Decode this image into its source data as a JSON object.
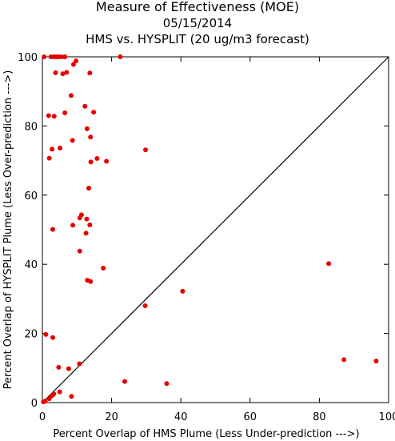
{
  "chart_data": {
    "type": "scatter",
    "title": "Measure of Effectiveness (MOE)",
    "subtitle_date": "05/15/2014",
    "subtitle": "HMS vs. HYSPLIT  (20 ug/m3 forecast)",
    "xlabel": "Percent Overlap of HMS Plume (Less Under-prediction --->)",
    "ylabel": "Percent Overlap of HYSPLIT Plume (Less Over-prediction --->)",
    "xlim": [
      0,
      100
    ],
    "ylim": [
      0,
      100
    ],
    "xticks": [
      "0",
      "20",
      "40",
      "60",
      "80",
      "100"
    ],
    "yticks": [
      "0",
      "20",
      "40",
      "60",
      "80",
      "100"
    ],
    "grid": false,
    "reference_line": "y = x",
    "point_color": "#e60000",
    "points": [
      [
        0.5,
        100
      ],
      [
        2.5,
        100
      ],
      [
        3.3,
        100
      ],
      [
        4.0,
        100
      ],
      [
        4.7,
        100
      ],
      [
        5.5,
        100
      ],
      [
        6.5,
        100
      ],
      [
        22.5,
        100
      ],
      [
        9.7,
        98.8
      ],
      [
        9.0,
        97.8
      ],
      [
        3.8,
        95.4
      ],
      [
        5.9,
        95.1
      ],
      [
        7.0,
        95.5
      ],
      [
        13.7,
        95.3
      ],
      [
        8.3,
        88.8
      ],
      [
        12.3,
        85.7
      ],
      [
        6.5,
        83.8
      ],
      [
        14.8,
        84.0
      ],
      [
        1.8,
        83.0
      ],
      [
        3.4,
        82.8
      ],
      [
        12.9,
        79.2
      ],
      [
        13.9,
        76.8
      ],
      [
        8.7,
        75.8
      ],
      [
        2.8,
        73.3
      ],
      [
        5.1,
        73.6
      ],
      [
        29.8,
        73.1
      ],
      [
        2.0,
        70.7
      ],
      [
        15.8,
        70.6
      ],
      [
        18.5,
        69.8
      ],
      [
        14.0,
        69.6
      ],
      [
        13.4,
        62.0
      ],
      [
        11.3,
        54.3
      ],
      [
        10.8,
        53.4
      ],
      [
        12.8,
        53.1
      ],
      [
        8.8,
        51.3
      ],
      [
        13.7,
        51.4
      ],
      [
        3.0,
        50.1
      ],
      [
        12.6,
        49.0
      ],
      [
        10.8,
        43.8
      ],
      [
        17.6,
        38.9
      ],
      [
        13.0,
        35.4
      ],
      [
        13.9,
        35.0
      ],
      [
        82.7,
        40.2
      ],
      [
        40.5,
        32.2
      ],
      [
        29.7,
        28.0
      ],
      [
        1.0,
        19.7
      ],
      [
        3.0,
        18.8
      ],
      [
        87.1,
        12.4
      ],
      [
        96.4,
        12.0
      ],
      [
        10.7,
        11.2
      ],
      [
        4.7,
        10.2
      ],
      [
        7.6,
        9.8
      ],
      [
        23.8,
        6.1
      ],
      [
        35.9,
        5.5
      ],
      [
        5.0,
        3.1
      ],
      [
        3.3,
        2.5
      ],
      [
        2.8,
        2.0
      ],
      [
        8.4,
        1.8
      ],
      [
        2.0,
        1.1
      ],
      [
        0.8,
        0.4
      ],
      [
        0.3,
        0.2
      ]
    ]
  }
}
